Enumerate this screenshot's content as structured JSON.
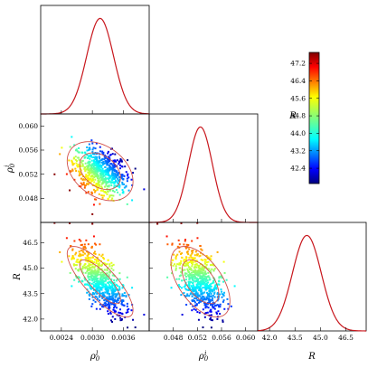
{
  "chart_data": {
    "type": "scatter",
    "description_layout": "corner",
    "parameters": [
      {
        "key": "p1",
        "label_base": "ρ",
        "label_sub": "0",
        "label_sup": "l",
        "range": [
          0.002,
          0.0041
        ],
        "ticks": [
          "0.0024",
          "0.0030",
          "0.0036"
        ],
        "tick_values": [
          0.0024,
          0.003,
          0.0036
        ],
        "mean": 0.00315,
        "sd": 0.00026
      },
      {
        "key": "p2",
        "label_base": "ρ",
        "label_sub": "0",
        "label_sup": "i",
        "range": [
          0.044,
          0.062
        ],
        "ticks": [
          "0.048",
          "0.052",
          "0.056",
          "0.060"
        ],
        "tick_values": [
          0.048,
          0.052,
          0.056,
          0.06
        ],
        "mean": 0.0525,
        "sd": 0.002
      },
      {
        "key": "R",
        "label": "R",
        "range": [
          41.3,
          47.7
        ],
        "ticks": [
          "42.0",
          "43.5",
          "45.0",
          "46.5"
        ],
        "tick_values": [
          42.0,
          43.5,
          45.0,
          46.5
        ],
        "x_ticks": [
          "42.0",
          "43.5",
          "45.0",
          "46.5"
        ],
        "mean": 44.2,
        "sd": 0.85
      }
    ],
    "correlations": {
      "p1_p2": -0.35,
      "p1_R": -0.8,
      "p2_R": -0.55
    },
    "n_points": 700,
    "color_by": "R",
    "colorbar": {
      "label": "R",
      "range": [
        41.7,
        47.7
      ],
      "ticks": [
        "42.4",
        "43.2",
        "44.0",
        "44.8",
        "45.6",
        "46.4",
        "47.2"
      ],
      "tick_values": [
        42.4,
        43.2,
        44.0,
        44.8,
        45.6,
        46.4,
        47.2
      ],
      "colormap": "jet"
    },
    "colors": {
      "pdf_line": "#c8171d",
      "contour_line": "#d2504a"
    }
  }
}
